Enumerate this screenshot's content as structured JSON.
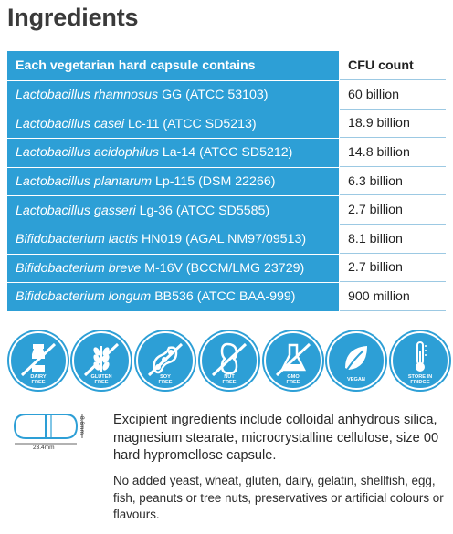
{
  "title": "Ingredients",
  "table": {
    "header": {
      "col1": "Each vegetarian hard capsule contains",
      "col2": "CFU count"
    },
    "rows": [
      {
        "species": "Lactobacillus rhamnosus",
        "strain": "GG (ATCC 53103)",
        "cfu": "60 billion"
      },
      {
        "species": "Lactobacillus casei",
        "strain": "Lc-11 (ATCC SD5213)",
        "cfu": "18.9 billion"
      },
      {
        "species": "Lactobacillus acidophilus",
        "strain": "La-14 (ATCC SD5212)",
        "cfu": "14.8 billion"
      },
      {
        "species": "Lactobacillus plantarum",
        "strain": "Lp-115 (DSM 22266)",
        "cfu": "6.3 billion"
      },
      {
        "species": "Lactobacillus gasseri",
        "strain": "Lg-36 (ATCC SD5585)",
        "cfu": "2.7 billion"
      },
      {
        "species": "Bifidobacterium lactis",
        "strain": "HN019 (AGAL NM97/09513)",
        "cfu": "8.1 billion"
      },
      {
        "species": "Bifidobacterium breve",
        "strain": "M-16V (BCCM/LMG 23729)",
        "cfu": "2.7 billion"
      },
      {
        "species": "Bifidobacterium longum",
        "strain": "BB536 (ATCC BAA-999)",
        "cfu": "900 million"
      }
    ]
  },
  "badges": [
    {
      "icon": "milk-bottle-icon",
      "line1": "DAIRY",
      "line2": "FREE"
    },
    {
      "icon": "wheat-icon",
      "line1": "GLUTEN",
      "line2": "FREE"
    },
    {
      "icon": "soy-bean-icon",
      "line1": "SOY",
      "line2": "FREE"
    },
    {
      "icon": "peanut-icon",
      "line1": "NUT",
      "line2": "FREE"
    },
    {
      "icon": "flask-icon",
      "line1": "GMO",
      "line2": "FREE"
    },
    {
      "icon": "leaf-icon",
      "line1": "VEGAN",
      "line2": ""
    },
    {
      "icon": "thermometer-icon",
      "line1": "STORE IN",
      "line2": "FRIDGE"
    }
  ],
  "capsule": {
    "height_label": "8.6mm",
    "length_label": "23.4mm"
  },
  "excipient_text": "Excipient ingredients include colloidal anhydrous silica, magnesium stearate, microcrystalline cellulose, size 00 hard hypromellose capsule.",
  "no_added_text": "No added yeast, wheat, gluten, dairy, gelatin, shellfish, egg, fish, peanuts or tree nuts, preservatives or artificial colours or flavours.",
  "colors": {
    "accent": "#2d9fd6",
    "title": "#3a3a3a"
  }
}
